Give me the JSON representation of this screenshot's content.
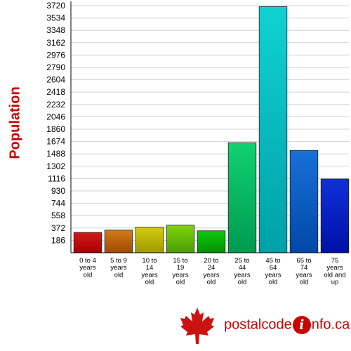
{
  "chart_data": {
    "type": "bar",
    "ylabel": "Population",
    "yticks": [
      186,
      372,
      558,
      744,
      930,
      1116,
      1302,
      1488,
      1674,
      1860,
      2046,
      2232,
      2418,
      2604,
      2790,
      2976,
      3162,
      3348,
      3534,
      3720
    ],
    "ylim": [
      0,
      3720
    ],
    "grid": true,
    "categories": [
      [
        "0 to 4",
        "years",
        "old"
      ],
      [
        "5 to 9",
        "years",
        "old"
      ],
      [
        "10 to",
        "14",
        "years",
        "old"
      ],
      [
        "15 to",
        "19",
        "years",
        "old"
      ],
      [
        "20 to",
        "24",
        "years",
        "old"
      ],
      [
        "25 to",
        "44",
        "years",
        "old"
      ],
      [
        "45 to",
        "64",
        "years",
        "old"
      ],
      [
        "65 to",
        "74",
        "years",
        "old"
      ],
      [
        "75",
        "years",
        "old and",
        "up"
      ]
    ],
    "values": [
      305,
      340,
      385,
      415,
      330,
      1655,
      3705,
      1540,
      1110
    ],
    "colors": [
      [
        "#d21a1a",
        "#a80000"
      ],
      [
        "#d27a1a",
        "#a04a00"
      ],
      [
        "#d4cc10",
        "#9e9a00"
      ],
      [
        "#7fd410",
        "#4a9e00"
      ],
      [
        "#10c810",
        "#009000"
      ],
      [
        "#10d270",
        "#009a50"
      ],
      [
        "#10d2d2",
        "#00a0a8"
      ],
      [
        "#1870d8",
        "#0048a8"
      ],
      [
        "#1030d8",
        "#0010a8"
      ]
    ]
  },
  "logo": {
    "part1": "postal",
    "part2": "code",
    "i": "i",
    "part3": "nfo.ca"
  }
}
